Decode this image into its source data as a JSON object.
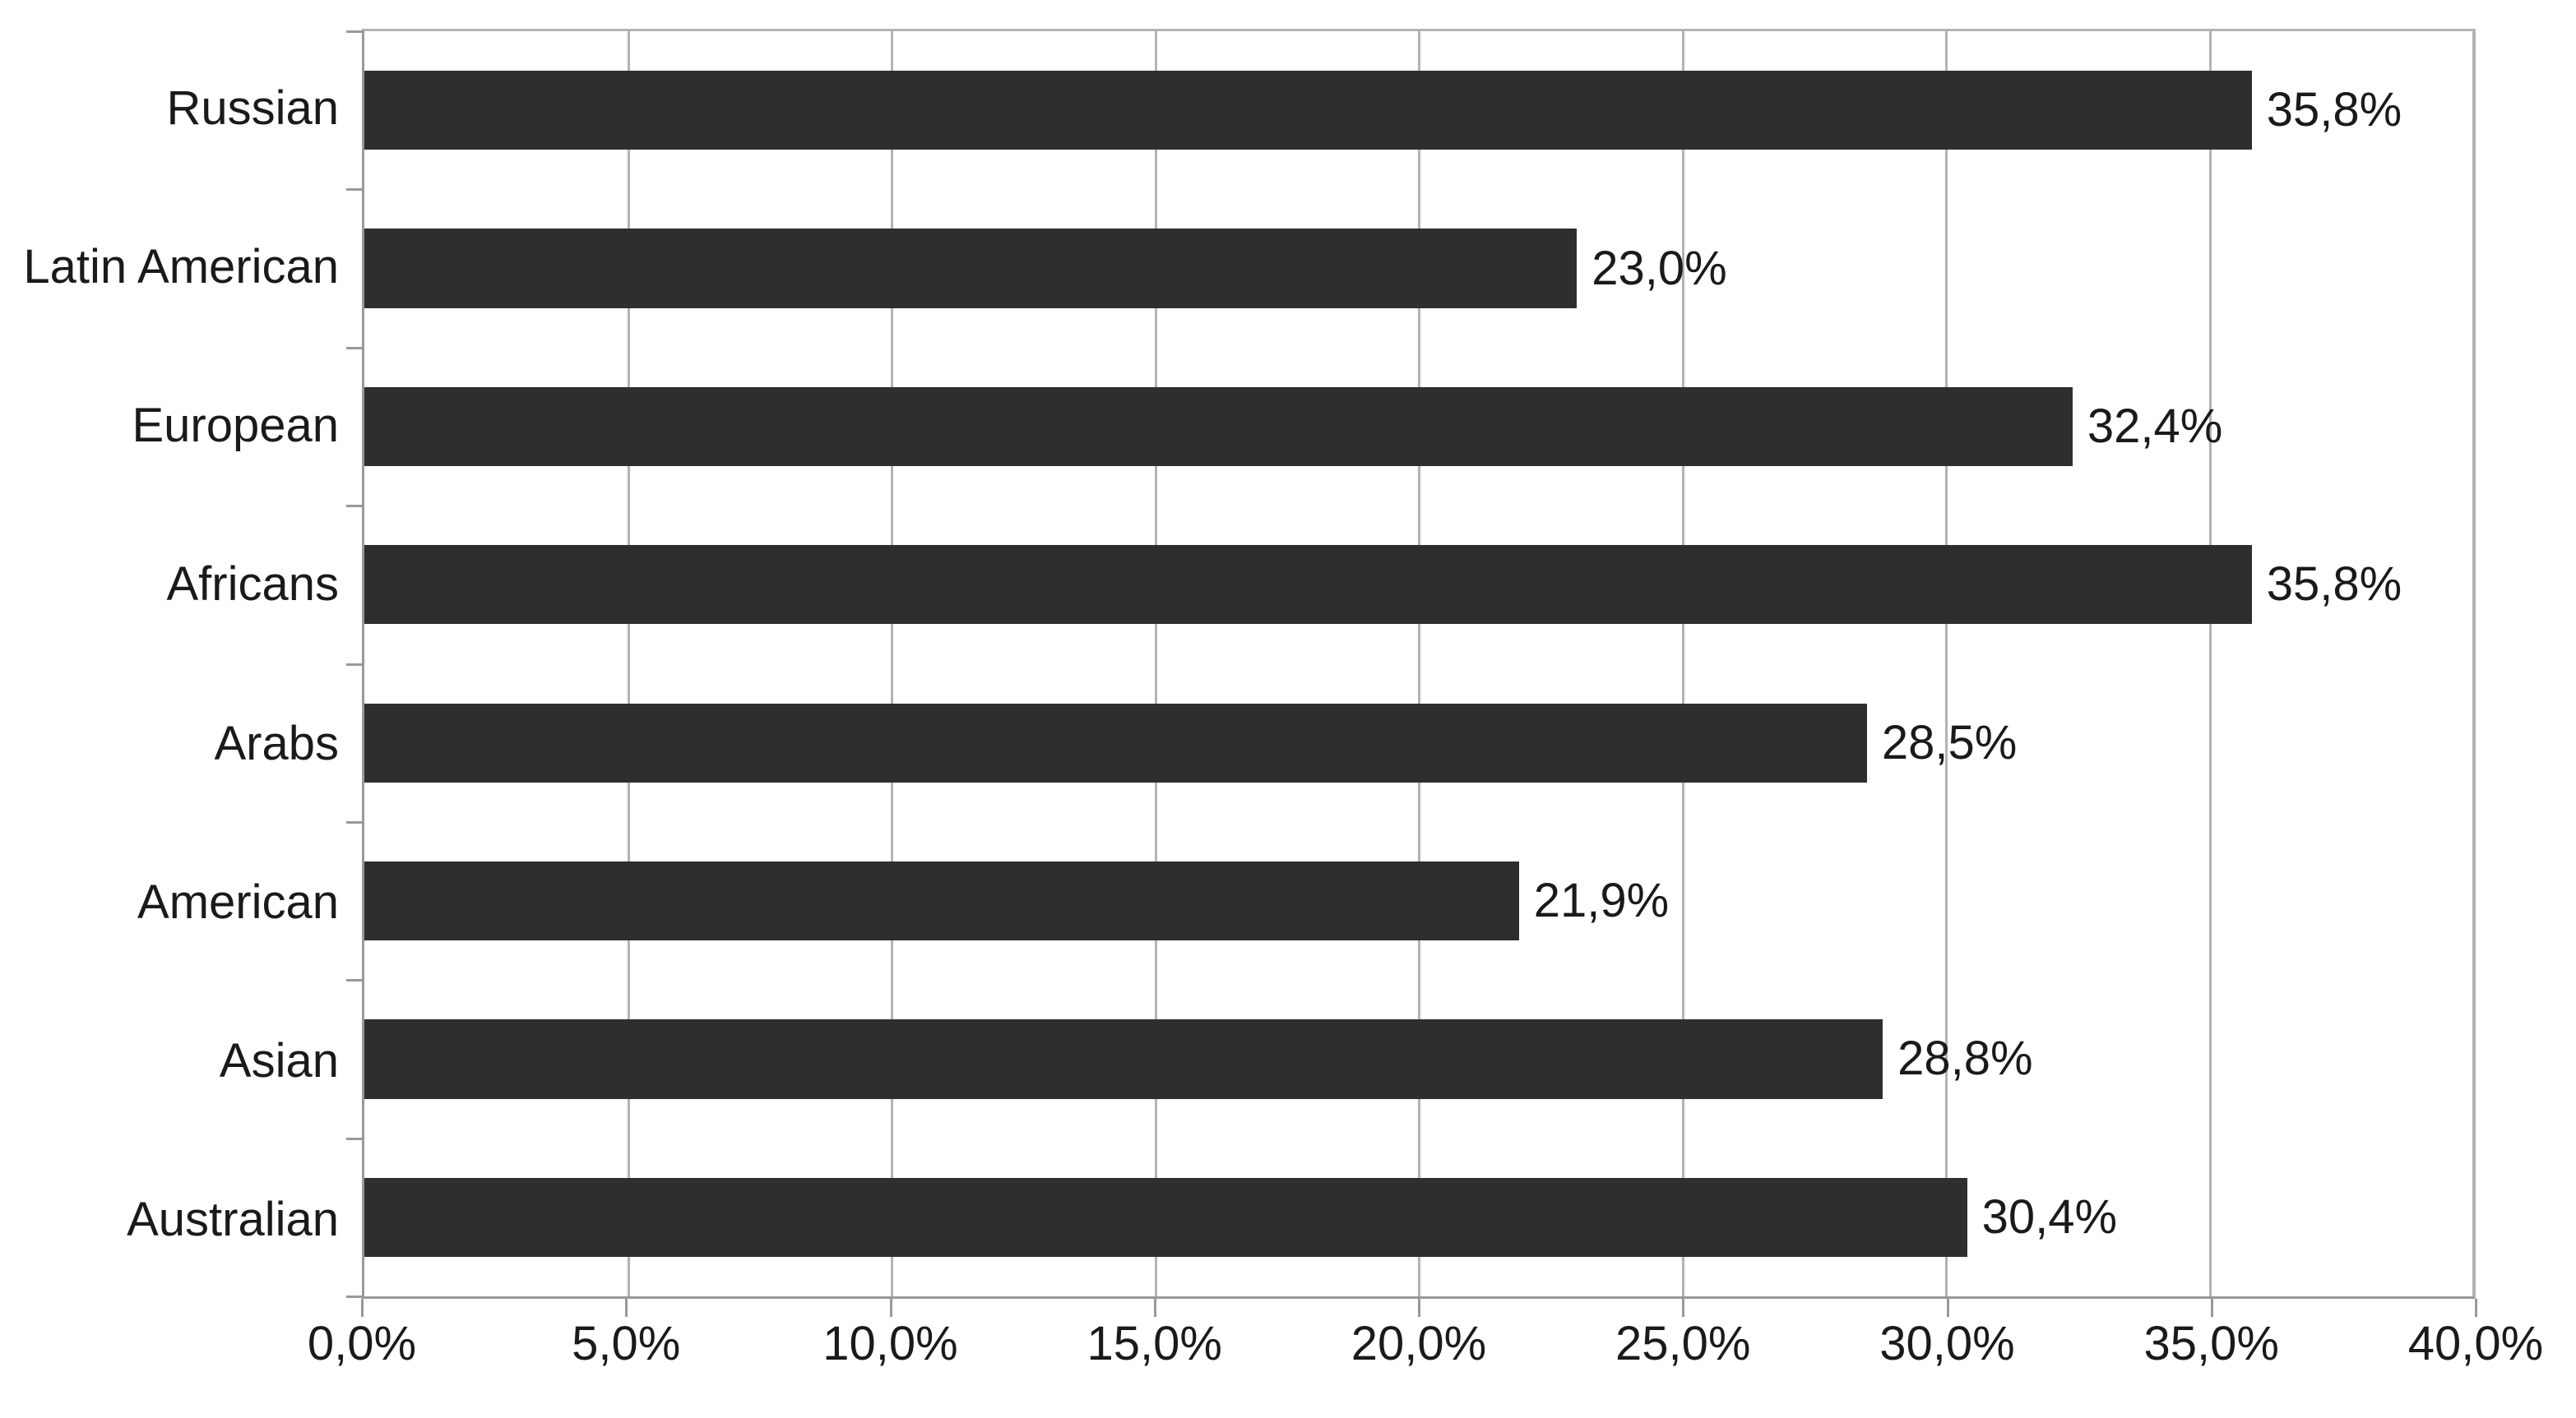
{
  "chart_data": {
    "type": "bar",
    "orientation": "horizontal",
    "title": "",
    "xlabel": "",
    "ylabel": "",
    "categories": [
      "Russian",
      "Latin American",
      "European",
      "Africans",
      "Arabs",
      "American",
      "Asian",
      "Australian"
    ],
    "values": [
      35.8,
      23.0,
      32.4,
      35.8,
      28.5,
      21.9,
      28.8,
      30.4
    ],
    "value_labels": [
      "35,8%",
      "23,0%",
      "32,4%",
      "35,8%",
      "28,5%",
      "21,9%",
      "28,8%",
      "30,4%"
    ],
    "xlim": [
      0,
      40
    ],
    "x_tick_step": 5,
    "x_tick_labels": [
      "0,0%",
      "5,0%",
      "10,0%",
      "15,0%",
      "20,0%",
      "25,0%",
      "30,0%",
      "35,0%",
      "40,0%"
    ],
    "grid": true,
    "legend": false,
    "data_labels_position": "outside-end"
  },
  "colors": {
    "bar": "#2e2e2e",
    "gridline": "#b3b3b3",
    "axis": "#999999",
    "text": "#1a1a1a",
    "background": "#ffffff"
  }
}
